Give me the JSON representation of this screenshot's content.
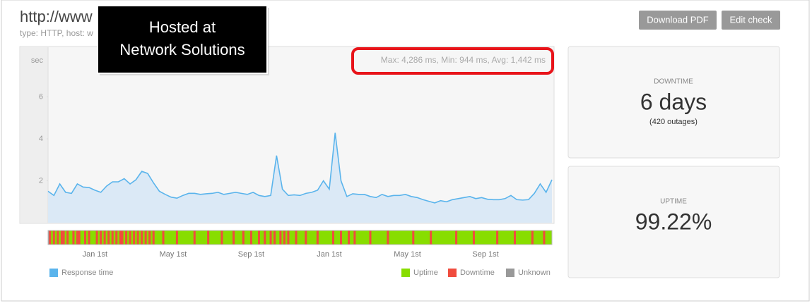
{
  "header": {
    "title": "http://www",
    "subtitle": "type: HTTP, host: w"
  },
  "buttons": [
    "Download PDF",
    "Edit check"
  ],
  "callout": {
    "lines": [
      "Hosted at",
      "Network Solutions"
    ]
  },
  "chart_data": {
    "type": "line",
    "y_label": "sec",
    "stats": "Max: 4,286 ms, Min: 944 ms, Avg: 1,442 ms",
    "x": [
      -2.4,
      -2.1,
      -1.8,
      -1.5,
      -1.2,
      -0.9,
      -0.6,
      -0.3,
      0,
      0.3,
      0.6,
      0.9,
      1.2,
      1.5,
      1.8,
      2.1,
      2.4,
      2.7,
      3,
      3.3,
      3.6,
      3.9,
      4.2,
      4.5,
      4.8,
      5.1,
      5.4,
      5.7,
      6,
      6.3,
      6.6,
      6.9,
      7.2,
      7.5,
      7.8,
      8.1,
      8.4,
      8.7,
      9,
      9.3,
      9.6,
      9.9,
      10.2,
      10.5,
      10.8,
      11.1,
      11.4,
      11.7,
      12,
      12.3,
      12.6,
      12.9,
      13.2,
      13.5,
      13.8,
      14.1,
      14.4,
      14.7,
      15,
      15.3,
      15.6,
      15.9,
      16.2,
      16.5,
      16.8,
      17.1,
      17.4,
      17.7,
      18,
      18.3,
      18.6,
      18.9,
      19.2,
      19.5,
      19.8,
      20.1,
      20.4,
      20.7,
      21,
      21.3,
      21.6,
      21.9,
      22.2,
      22.5,
      22.8,
      23.1,
      23.4
    ],
    "series": [
      {
        "name": "Response time",
        "color": "#5ab4ec",
        "values": [
          1.5,
          1.3,
          1.85,
          1.45,
          1.4,
          1.85,
          1.7,
          1.68,
          1.55,
          1.45,
          1.75,
          1.95,
          1.95,
          2.1,
          1.85,
          2.05,
          2.45,
          2.35,
          1.9,
          1.5,
          1.35,
          1.22,
          1.17,
          1.3,
          1.4,
          1.4,
          1.35,
          1.38,
          1.4,
          1.45,
          1.35,
          1.4,
          1.45,
          1.4,
          1.35,
          1.45,
          1.3,
          1.25,
          1.3,
          3.2,
          1.6,
          1.3,
          1.33,
          1.3,
          1.4,
          1.45,
          1.55,
          2.0,
          1.6,
          4.286,
          2.0,
          1.25,
          1.38,
          1.35,
          1.35,
          1.25,
          1.2,
          1.35,
          1.25,
          1.3,
          1.3,
          1.35,
          1.25,
          1.2,
          1.1,
          1.02,
          0.944,
          1.05,
          1.0,
          1.1,
          1.15,
          1.2,
          1.25,
          1.15,
          1.2,
          1.12,
          1.1,
          1.1,
          1.15,
          1.3,
          1.1,
          1.08,
          1.1,
          1.4,
          1.85,
          1.45,
          2.05
        ]
      }
    ],
    "xlim": [
      -2.4,
      23.4
    ],
    "xticks": [
      {
        "value": 0,
        "label": "Jan 1st"
      },
      {
        "value": 4,
        "label": "May 1st"
      },
      {
        "value": 8,
        "label": "Sep 1st"
      },
      {
        "value": 12,
        "label": "Jan 1st"
      },
      {
        "value": 16,
        "label": "May 1st"
      },
      {
        "value": 20,
        "label": "Sep 1st"
      }
    ],
    "ylim": [
      0,
      8.37
    ],
    "yticks": [
      2,
      4,
      6
    ],
    "downtime_x": [
      -2.3,
      -2.1,
      -1.9,
      -1.7,
      -1.6,
      -1.4,
      -1.1,
      -0.9,
      -0.8,
      -0.5,
      -0.3,
      0.1,
      0.3,
      0.5,
      0.7,
      0.9,
      1.1,
      1.3,
      1.4,
      1.6,
      1.8,
      2.0,
      2.2,
      2.4,
      2.6,
      2.8,
      3.0,
      3.5,
      4.2,
      5.1,
      5.8,
      6.5,
      7.1,
      7.6,
      8.0,
      8.4,
      8.7,
      9.0,
      9.2,
      9.5,
      9.7,
      9.9,
      10.3,
      10.8,
      11.4,
      12.2,
      12.6,
      13.0,
      13.3,
      14.1,
      15.0,
      16.3,
      17.2,
      18.5,
      19.4,
      20.6,
      21.5,
      22.4,
      23.0
    ],
    "status_legend": [
      {
        "name": "Uptime",
        "color": "#88dd00"
      },
      {
        "name": "Downtime",
        "color": "#f04c3e"
      },
      {
        "name": "Unknown",
        "color": "#999999"
      }
    ]
  },
  "panels": [
    {
      "title": "DOWNTIME",
      "value": "6 days",
      "note": "(420 outages)"
    },
    {
      "title": "UPTIME",
      "value": "99.22%"
    }
  ]
}
